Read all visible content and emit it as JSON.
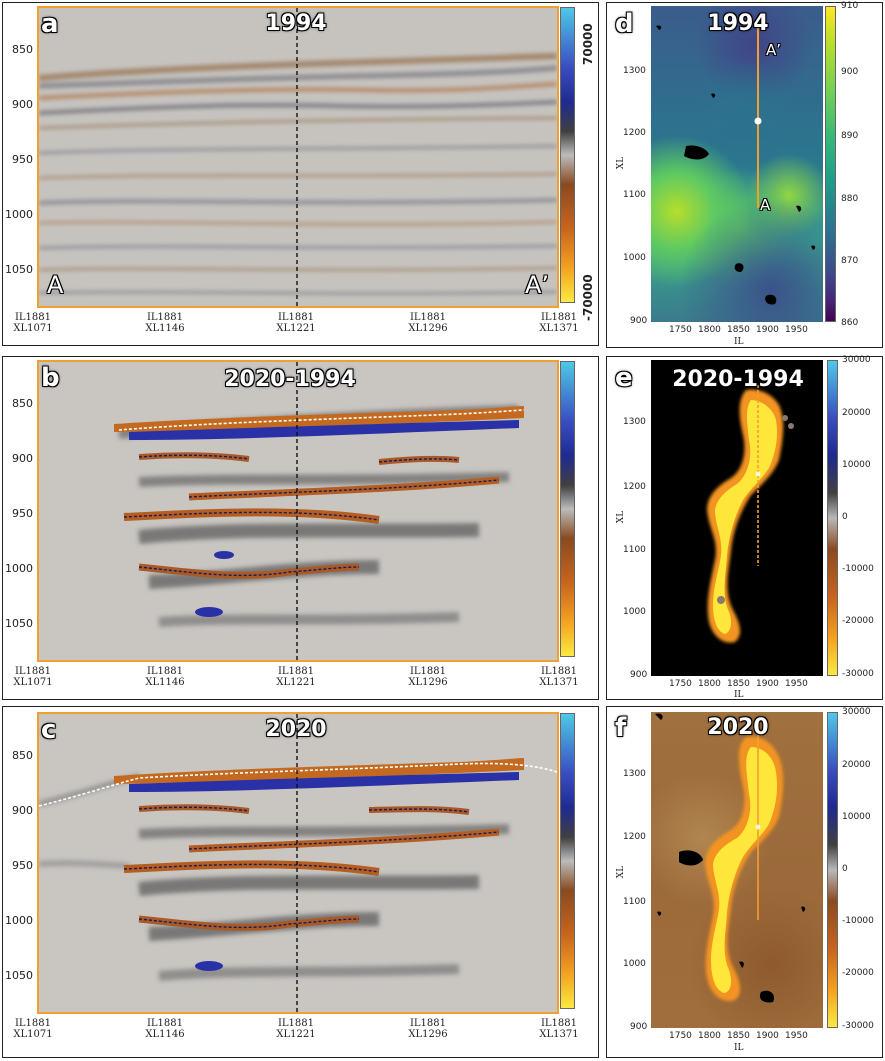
{
  "panels": {
    "a": {
      "letter": "a",
      "title": "1994",
      "left_label": "A",
      "right_label": "A’"
    },
    "b": {
      "letter": "b",
      "title": "2020-1994"
    },
    "c": {
      "letter": "c",
      "title": "2020"
    },
    "d": {
      "letter": "d",
      "title": "1994",
      "label_top": "A’",
      "label_bottom": "A"
    },
    "e": {
      "letter": "e",
      "title": "2020-1994"
    },
    "f": {
      "letter": "f",
      "title": "2020"
    }
  },
  "section_axis": {
    "y_ticks": [
      "850",
      "900",
      "950",
      "1000",
      "1050"
    ],
    "x_ticks": [
      {
        "il": "IL1881",
        "xl": "XL1071"
      },
      {
        "il": "IL1881",
        "xl": "XL1146"
      },
      {
        "il": "IL1881",
        "xl": "XL1221"
      },
      {
        "il": "IL1881",
        "xl": "XL1296"
      },
      {
        "il": "IL1881",
        "xl": "XL1371"
      }
    ],
    "colorbar_a": {
      "top": "70000",
      "bottom": "-70000"
    }
  },
  "map_axis": {
    "x_ticks": [
      "1750",
      "1800",
      "1850",
      "1900",
      "1950"
    ],
    "y_ticks": [
      "1300",
      "1200",
      "1100",
      "1000",
      "900"
    ],
    "xlabel": "IL",
    "ylabel": "XL",
    "colorbar_d": [
      "910",
      "900",
      "890",
      "880",
      "870",
      "860"
    ],
    "colorbar_ef": [
      "30000",
      "20000",
      "10000",
      "0",
      "-10000",
      "-20000",
      "-30000"
    ]
  },
  "colors": {
    "frame_orange": "#f0a030",
    "section_bg": "#c9c6c2",
    "dark_blue": "#2a3aa6",
    "brown": "#a0522d",
    "yellow": "#fde725"
  }
}
